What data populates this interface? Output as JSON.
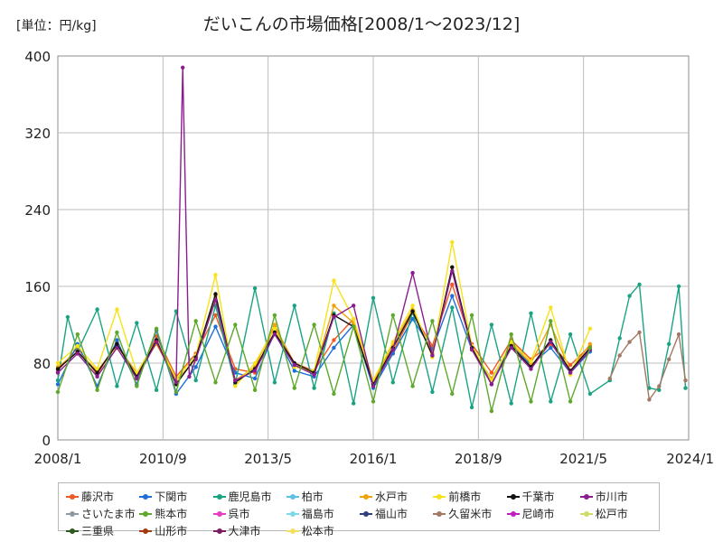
{
  "unit_label": "[単位：円/kg]",
  "chart_data": {
    "type": "line",
    "title": "だいこんの市場価格[2008/1～2023/12]",
    "ylim": [
      0,
      400
    ],
    "yticks": [
      0,
      80,
      160,
      240,
      320,
      400
    ],
    "xlim": [
      2008.0,
      2024.0
    ],
    "xticks": [
      {
        "value": 2008.0,
        "label": "2008/1"
      },
      {
        "value": 2010.667,
        "label": "2010/9"
      },
      {
        "value": 2013.333,
        "label": "2013/5"
      },
      {
        "value": 2016.0,
        "label": "2016/1"
      },
      {
        "value": 2018.667,
        "label": "2018/9"
      },
      {
        "value": 2021.333,
        "label": "2021/5"
      },
      {
        "value": 2024.0,
        "label": "2024/1"
      }
    ],
    "grid": true,
    "legend_position": "bottom",
    "series": [
      {
        "name": "藤沢市",
        "color": "#f05a22",
        "x": [
          2008.0,
          2008.5,
          2009.0,
          2009.5,
          2010.0,
          2010.5,
          2011.0,
          2011.5,
          2012.0,
          2012.5,
          2013.0,
          2013.5,
          2014.0,
          2014.5,
          2015.0,
          2015.5,
          2016.0,
          2016.5,
          2017.0,
          2017.5,
          2018.0,
          2018.5,
          2019.0,
          2019.5,
          2020.0,
          2020.5,
          2021.0,
          2021.5
        ],
        "y": [
          72,
          96,
          68,
          102,
          64,
          108,
          66,
          90,
          130,
          74,
          70,
          118,
          80,
          72,
          104,
          126,
          58,
          92,
          132,
          98,
          162,
          100,
          70,
          104,
          84,
          100,
          78,
          98
        ]
      },
      {
        "name": "下関市",
        "color": "#1f6fd9",
        "x": [
          2008.0,
          2008.5,
          2009.0,
          2009.5,
          2010.0,
          2010.5,
          2011.0,
          2011.5,
          2012.0,
          2012.5,
          2013.0,
          2013.5,
          2014.0,
          2014.5,
          2015.0,
          2015.5,
          2016.0,
          2016.5,
          2017.0,
          2017.5,
          2018.0,
          2018.5,
          2019.0,
          2019.5,
          2020.0,
          2020.5,
          2021.0,
          2021.5
        ],
        "y": [
          58,
          100,
          56,
          104,
          58,
          114,
          48,
          76,
          118,
          70,
          64,
          112,
          72,
          66,
          96,
          120,
          54,
          90,
          126,
          94,
          150,
          94,
          62,
          100,
          78,
          96,
          70,
          92
        ]
      },
      {
        "name": "鹿児島市",
        "color": "#1aa383",
        "x": [
          2008.0,
          2008.25,
          2008.5,
          2009.0,
          2009.5,
          2010.0,
          2010.5,
          2011.0,
          2011.5,
          2012.0,
          2012.5,
          2013.0,
          2013.5,
          2014.0,
          2014.5,
          2015.0,
          2015.5,
          2016.0,
          2016.5,
          2017.0,
          2017.5,
          2018.0,
          2018.5,
          2019.0,
          2019.5,
          2020.0,
          2020.5,
          2021.0,
          2021.5,
          2022.0,
          2022.25,
          2022.5,
          2022.75,
          2023.0,
          2023.25,
          2023.5,
          2023.75,
          2023.92
        ],
        "y": [
          62,
          128,
          92,
          136,
          56,
          122,
          52,
          134,
          62,
          140,
          58,
          158,
          60,
          140,
          54,
          132,
          38,
          148,
          60,
          134,
          50,
          138,
          34,
          120,
          38,
          132,
          40,
          110,
          48,
          62,
          106,
          150,
          162,
          54,
          52,
          100,
          160,
          54
        ]
      },
      {
        "name": "柏市",
        "color": "#5bc0e8",
        "x": [],
        "y": []
      },
      {
        "name": "水戸市",
        "color": "#f0a30a",
        "x": [
          2008.0,
          2008.5,
          2009.0,
          2009.5,
          2010.0,
          2010.5,
          2011.0,
          2011.5,
          2012.0,
          2012.5,
          2013.0,
          2013.5,
          2014.0,
          2014.5,
          2015.0,
          2015.5,
          2016.0,
          2016.5,
          2017.0,
          2017.5,
          2018.0,
          2018.5,
          2019.0,
          2019.5,
          2020.0,
          2020.5,
          2021.0,
          2021.5
        ],
        "y": [
          76,
          92,
          72,
          98,
          70,
          100,
          62,
          84,
          150,
          62,
          76,
          120,
          78,
          70,
          140,
          122,
          60,
          100,
          136,
          90,
          180,
          94,
          64,
          100,
          80,
          120,
          72,
          100
        ]
      },
      {
        "name": "前橋市",
        "color": "#f7e21b",
        "x": [
          2008.0,
          2008.5,
          2009.0,
          2009.5,
          2010.0,
          2010.5,
          2011.0,
          2011.5,
          2012.0,
          2012.5,
          2013.0,
          2013.5,
          2014.0,
          2014.5,
          2015.0,
          2015.5,
          2016.0,
          2016.5,
          2017.0,
          2017.5,
          2018.0,
          2018.5,
          2019.0,
          2019.5,
          2020.0,
          2020.5,
          2021.0,
          2021.5
        ],
        "y": [
          80,
          98,
          74,
          136,
          70,
          104,
          64,
          88,
          172,
          56,
          80,
          116,
          76,
          72,
          166,
          126,
          62,
          102,
          140,
          86,
          206,
          98,
          62,
          102,
          82,
          138,
          68,
          116
        ]
      },
      {
        "name": "千葉市",
        "color": "#111111",
        "x": [
          2008.0,
          2008.5,
          2009.0,
          2009.5,
          2010.0,
          2010.5,
          2011.0,
          2011.5,
          2012.0,
          2012.5,
          2013.0,
          2013.5,
          2014.0,
          2014.5,
          2015.0,
          2015.5,
          2016.0,
          2016.5,
          2017.0,
          2017.5,
          2018.0,
          2018.5,
          2019.0,
          2019.5,
          2020.0,
          2020.5,
          2021.0,
          2021.5
        ],
        "y": [
          74,
          92,
          70,
          100,
          66,
          104,
          58,
          86,
          152,
          60,
          74,
          112,
          80,
          70,
          130,
          118,
          58,
          96,
          134,
          88,
          180,
          96,
          58,
          98,
          76,
          104,
          72,
          96
        ]
      },
      {
        "name": "市川市",
        "color": "#8b1e8f",
        "x": [
          2008.0,
          2008.5,
          2009.0,
          2009.5,
          2010.0,
          2010.5,
          2011.0,
          2011.167,
          2011.333,
          2011.5,
          2012.0,
          2012.5,
          2013.0,
          2013.5,
          2014.0,
          2014.5,
          2015.0,
          2015.5,
          2016.0,
          2016.5,
          2017.0,
          2017.5,
          2018.0,
          2018.5,
          2019.0,
          2019.5,
          2020.0,
          2020.5,
          2021.0,
          2021.5
        ],
        "y": [
          70,
          90,
          66,
          96,
          64,
          102,
          60,
          388,
          66,
          84,
          146,
          62,
          72,
          110,
          78,
          68,
          128,
          140,
          56,
          94,
          174,
          88,
          176,
          94,
          58,
          96,
          74,
          102,
          70,
          94
        ]
      },
      {
        "name": "さいたま市",
        "color": "#8c99a6",
        "x": [],
        "y": []
      },
      {
        "name": "熊本市",
        "color": "#5ea82c",
        "x": [
          2008.0,
          2008.5,
          2009.0,
          2009.5,
          2010.0,
          2010.5,
          2011.0,
          2011.5,
          2012.0,
          2012.5,
          2013.0,
          2013.5,
          2014.0,
          2014.5,
          2015.0,
          2015.5,
          2016.0,
          2016.5,
          2017.0,
          2017.5,
          2018.0,
          2018.5,
          2019.0,
          2019.5,
          2020.0,
          2020.5,
          2021.0,
          2021.5
        ],
        "y": [
          50,
          110,
          52,
          112,
          56,
          116,
          50,
          124,
          60,
          120,
          52,
          130,
          54,
          120,
          48,
          118,
          40,
          130,
          56,
          124,
          48,
          130,
          30,
          110,
          40,
          124,
          40,
          96
        ]
      },
      {
        "name": "呉市",
        "color": "#e83cc3",
        "x": [],
        "y": []
      },
      {
        "name": "福島市",
        "color": "#7fd8ea",
        "x": [],
        "y": []
      },
      {
        "name": "福山市",
        "color": "#2e3f7d",
        "x": [],
        "y": []
      },
      {
        "name": "久留米市",
        "color": "#a37964",
        "x": [
          2022.0,
          2022.25,
          2022.5,
          2022.75,
          2023.0,
          2023.25,
          2023.5,
          2023.75,
          2023.92
        ],
        "y": [
          64,
          88,
          102,
          112,
          42,
          56,
          84,
          110,
          62
        ]
      },
      {
        "name": "尼崎市",
        "color": "#c31fc0",
        "x": [],
        "y": []
      },
      {
        "name": "松戸市",
        "color": "#cfdc6a",
        "x": [],
        "y": []
      },
      {
        "name": "三重県",
        "color": "#2d5a1b",
        "x": [],
        "y": []
      },
      {
        "name": "山形市",
        "color": "#a33a0e",
        "x": [],
        "y": []
      },
      {
        "name": "大津市",
        "color": "#7a1c60",
        "x": [],
        "y": []
      },
      {
        "name": "松本市",
        "color": "#f2df62",
        "x": [],
        "y": []
      }
    ]
  }
}
